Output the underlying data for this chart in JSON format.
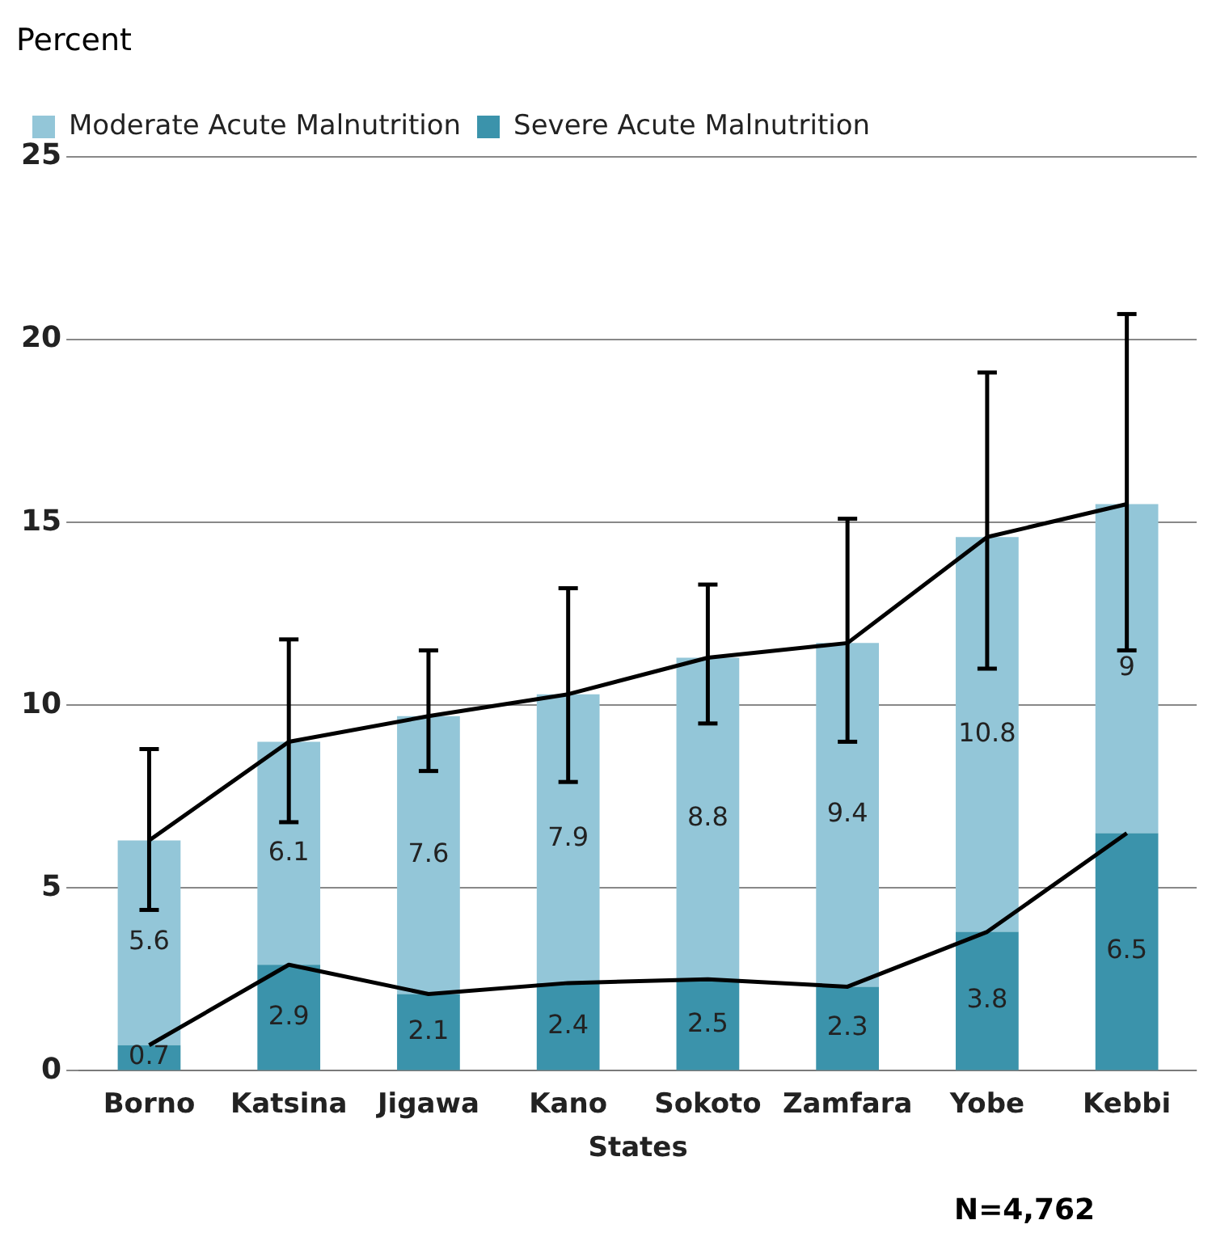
{
  "chart_data": {
    "type": "bar",
    "stacked": true,
    "ylabel": "Percent",
    "xlabel": "States",
    "annotations": [
      "N=4,762"
    ],
    "categories": [
      "Borno",
      "Katsina",
      "Jigawa",
      "Kano",
      "Sokoto",
      "Zamfara",
      "Yobe",
      "Kebbi"
    ],
    "series": [
      {
        "name": "Severe Acute Malnutrition",
        "color": "#3b93ab",
        "values": [
          0.7,
          2.9,
          2.1,
          2.4,
          2.5,
          2.3,
          3.8,
          6.5
        ],
        "value_labels": [
          "0.7",
          "2.9",
          "2.1",
          "2.4",
          "2.5",
          "2.3",
          "3.8",
          "6.5"
        ]
      },
      {
        "name": "Moderate Acute Malnutrition",
        "color": "#93c6d8",
        "values": [
          5.6,
          6.1,
          7.6,
          7.9,
          8.8,
          9.4,
          10.8,
          9
        ],
        "value_labels": [
          "5.6",
          "6.1",
          "7.6",
          "7.9",
          "8.8",
          "9.4",
          "10.8",
          "9"
        ],
        "errors": [
          [
            4.4,
            8.8
          ],
          [
            6.8,
            11.8
          ],
          [
            8.2,
            11.5
          ],
          [
            7.9,
            13.2
          ],
          [
            9.5,
            13.3
          ],
          [
            9.0,
            15.1
          ],
          [
            11.0,
            19.1
          ],
          [
            11.5,
            20.7
          ]
        ]
      },
      {
        "type": "line",
        "color": "#000000",
        "values": [
          6.3,
          9.0,
          9.7,
          10.3,
          11.3,
          11.7,
          14.6,
          15.5
        ]
      },
      {
        "type": "line",
        "color": "#000000",
        "values": [
          0.7,
          2.9,
          2.1,
          2.4,
          2.5,
          2.3,
          3.8,
          6.5
        ]
      }
    ],
    "ylim": [
      0,
      25
    ],
    "yticks": [
      0,
      5,
      10,
      15,
      20,
      25
    ],
    "grid": "y",
    "legend": "top left",
    "marker": "none"
  }
}
